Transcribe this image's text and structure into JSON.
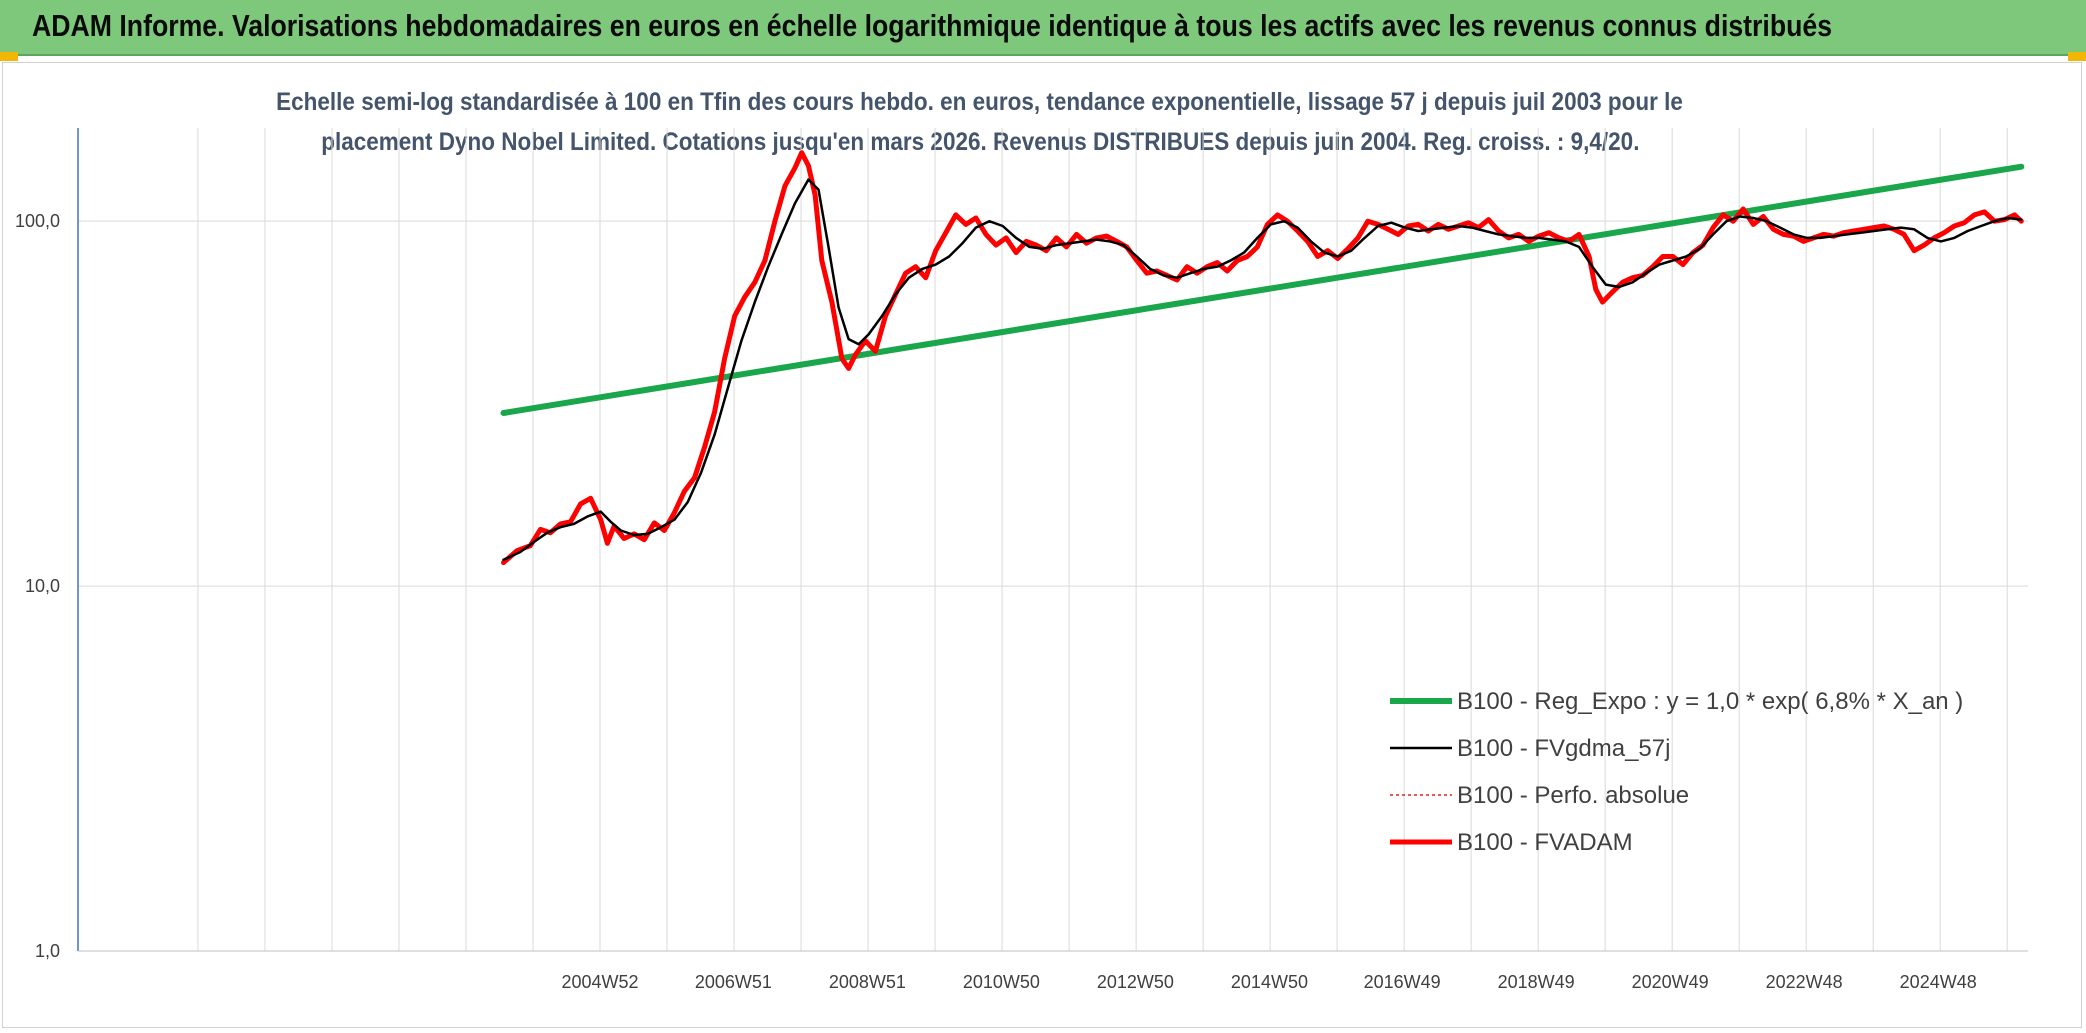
{
  "header": {
    "title": "ADAM Informe. Valorisations hebdomadaires en euros en échelle logarithmique identique à tous les actifs avec les revenus connus distribués"
  },
  "colors": {
    "banner": "#7dc87a",
    "regression": "#1aa64a",
    "smoothed": "#000000",
    "absolute": "#e02020",
    "fvadam": "#ff0000",
    "grid": "#d9d9d9",
    "axis": "#4472c4",
    "title_text": "#44546a"
  },
  "chart_data": {
    "type": "line",
    "title_line1": "Echelle semi-log standardisée à 100 en Tfin des cours hebdo. en euros, tendance exponentielle, lissage 57 j depuis juil 2003 pour le",
    "title_line2": "placement Dyno Nobel Limited. Cotations jusqu'en mars 2026. Revenus DISTRIBUES depuis juin 2004. Reg. croiss. : 9,4/20.",
    "y_scale": "log",
    "ylim": [
      1,
      180
    ],
    "y_ticks": [
      {
        "value": 100,
        "label": "100,0"
      },
      {
        "value": 10,
        "label": "10,0"
      },
      {
        "value": 1,
        "label": "1,0"
      }
    ],
    "xlim": [
      1997.2,
      2026.3
    ],
    "x_ticks": [
      {
        "value": 2004.99,
        "label": "2004W52"
      },
      {
        "value": 2006.98,
        "label": "2006W51"
      },
      {
        "value": 2008.98,
        "label": "2008W51"
      },
      {
        "value": 2010.98,
        "label": "2010W50"
      },
      {
        "value": 2012.98,
        "label": "2012W50"
      },
      {
        "value": 2014.98,
        "label": "2014W50"
      },
      {
        "value": 2016.96,
        "label": "2016W49"
      },
      {
        "value": 2018.96,
        "label": "2018W49"
      },
      {
        "value": 2020.96,
        "label": "2020W49"
      },
      {
        "value": 2022.96,
        "label": "2022W48"
      },
      {
        "value": 2024.96,
        "label": "2024W48"
      }
    ],
    "grid": true,
    "legend_position": "right",
    "series": [
      {
        "name": "B100 - Reg_Expo : y = 1,0 * exp( 6,8% *  X_an )",
        "style": "regression",
        "x": [
          2003.55,
          2026.2
        ],
        "y": [
          29.8,
          141
        ]
      },
      {
        "name": "B100 - FVgdma_57j",
        "style": "smoothed",
        "x": [
          2003.55,
          2003.8,
          2004.0,
          2004.2,
          2004.4,
          2004.6,
          2004.8,
          2005.0,
          2005.15,
          2005.3,
          2005.5,
          2005.7,
          2005.9,
          2006.1,
          2006.3,
          2006.5,
          2006.7,
          2006.9,
          2007.1,
          2007.3,
          2007.5,
          2007.7,
          2007.9,
          2008.1,
          2008.25,
          2008.4,
          2008.55,
          2008.7,
          2008.85,
          2009.0,
          2009.2,
          2009.4,
          2009.6,
          2009.8,
          2010.0,
          2010.2,
          2010.4,
          2010.6,
          2010.8,
          2011.0,
          2011.2,
          2011.4,
          2011.6,
          2011.8,
          2012.0,
          2012.2,
          2012.4,
          2012.6,
          2012.8,
          2013.0,
          2013.2,
          2013.4,
          2013.6,
          2013.8,
          2014.0,
          2014.2,
          2014.4,
          2014.6,
          2014.8,
          2015.0,
          2015.2,
          2015.4,
          2015.6,
          2015.8,
          2016.0,
          2016.2,
          2016.4,
          2016.6,
          2016.8,
          2017.0,
          2017.2,
          2017.4,
          2017.6,
          2017.8,
          2018.0,
          2018.2,
          2018.4,
          2018.6,
          2018.8,
          2019.0,
          2019.2,
          2019.4,
          2019.6,
          2019.8,
          2020.0,
          2020.2,
          2020.4,
          2020.6,
          2020.8,
          2021.0,
          2021.2,
          2021.4,
          2021.6,
          2021.8,
          2022.0,
          2022.2,
          2022.4,
          2022.6,
          2022.8,
          2023.0,
          2023.2,
          2023.4,
          2023.6,
          2023.8,
          2024.0,
          2024.2,
          2024.4,
          2024.6,
          2024.8,
          2025.0,
          2025.2,
          2025.4,
          2025.6,
          2025.8,
          2026.0,
          2026.2
        ],
        "y": [
          11.8,
          12.4,
          13.2,
          14.0,
          14.5,
          14.8,
          15.5,
          16.0,
          15.0,
          14.2,
          13.8,
          13.9,
          14.5,
          15.2,
          17.0,
          20.5,
          26.0,
          35.0,
          47.0,
          60.0,
          75.0,
          92.0,
          112.0,
          130.0,
          122.0,
          85.0,
          58.0,
          47.5,
          46.0,
          49.0,
          55.0,
          63.0,
          70.0,
          74.0,
          76.0,
          80.0,
          87.0,
          96.0,
          100.0,
          97.0,
          90.0,
          85.0,
          84.0,
          86.0,
          87.0,
          88.0,
          89.0,
          88.0,
          86.0,
          80.0,
          74.0,
          71.0,
          70.0,
          72.0,
          74.0,
          75.0,
          78.0,
          82.0,
          90.0,
          98.0,
          100.0,
          96.0,
          88.0,
          82.0,
          80.0,
          83.0,
          90.0,
          97.0,
          99.0,
          96.0,
          94.0,
          95.0,
          96.0,
          97.0,
          96.0,
          94.0,
          92.0,
          91.0,
          90.0,
          90.0,
          89.0,
          88.0,
          85.0,
          75.0,
          67.0,
          66.0,
          68.0,
          72.0,
          76.0,
          78.0,
          80.0,
          84.0,
          92.0,
          100.0,
          103.0,
          102.0,
          100.0,
          96.0,
          92.0,
          90.0,
          90.0,
          91.0,
          92.0,
          93.0,
          94.0,
          95.0,
          96.0,
          95.0,
          90.0,
          88.0,
          90.0,
          94.0,
          97.0,
          100.0,
          102.0,
          101.0
        ]
      },
      {
        "name": "B100 - Perfo. absolue",
        "style": "dotted",
        "x": [
          2003.55,
          2003.75,
          2003.95,
          2004.1,
          2004.25,
          2004.4,
          2004.55,
          2004.7,
          2004.85,
          2005.0,
          2005.1,
          2005.2,
          2005.35,
          2005.5,
          2005.65,
          2005.8,
          2005.95,
          2006.1,
          2006.25,
          2006.4,
          2006.55,
          2006.7,
          2006.85,
          2007.0,
          2007.15,
          2007.3,
          2007.45,
          2007.6,
          2007.75,
          2007.9,
          2008.0,
          2008.1,
          2008.2,
          2008.3,
          2008.45,
          2008.6,
          2008.7,
          2008.8,
          2008.95,
          2009.1,
          2009.25,
          2009.4,
          2009.55,
          2009.7,
          2009.85,
          2010.0,
          2010.15,
          2010.3,
          2010.45,
          2010.6,
          2010.75,
          2010.9,
          2011.05,
          2011.2,
          2011.35,
          2011.5,
          2011.65,
          2011.8,
          2011.95,
          2012.1,
          2012.25,
          2012.4,
          2012.55,
          2012.7,
          2012.85,
          2013.0,
          2013.15,
          2013.3,
          2013.45,
          2013.6,
          2013.75,
          2013.9,
          2014.05,
          2014.2,
          2014.35,
          2014.5,
          2014.65,
          2014.8,
          2014.95,
          2015.1,
          2015.25,
          2015.4,
          2015.55,
          2015.7,
          2015.85,
          2016.0,
          2016.15,
          2016.3,
          2016.45,
          2016.6,
          2016.75,
          2016.9,
          2017.05,
          2017.2,
          2017.35,
          2017.5,
          2017.65,
          2017.8,
          2017.95,
          2018.1,
          2018.25,
          2018.4,
          2018.55,
          2018.7,
          2018.85,
          2019.0,
          2019.15,
          2019.3,
          2019.45,
          2019.6,
          2019.75,
          2019.85,
          2019.95,
          2020.1,
          2020.25,
          2020.4,
          2020.55,
          2020.7,
          2020.85,
          2021.0,
          2021.15,
          2021.3,
          2021.45,
          2021.6,
          2021.75,
          2021.9,
          2022.05,
          2022.2,
          2022.35,
          2022.5,
          2022.65,
          2022.8,
          2022.95,
          2023.1,
          2023.25,
          2023.4,
          2023.55,
          2023.7,
          2023.85,
          2024.0,
          2024.15,
          2024.3,
          2024.45,
          2024.6,
          2024.75,
          2024.9,
          2025.05,
          2025.2,
          2025.35,
          2025.5,
          2025.65,
          2025.8,
          2025.95,
          2026.1,
          2026.2
        ],
        "y": [
          11.6,
          12.5,
          12.9,
          14.3,
          14.0,
          14.8,
          15.0,
          16.8,
          17.4,
          15.2,
          13.1,
          14.6,
          13.5,
          13.9,
          13.4,
          14.9,
          14.2,
          15.9,
          18.2,
          19.8,
          24.0,
          30.0,
          42.0,
          55.0,
          62.0,
          68.0,
          78.0,
          100.0,
          125.0,
          140.0,
          154.0,
          142.0,
          118.0,
          78.0,
          60.0,
          42.0,
          39.5,
          43.0,
          47.0,
          44.0,
          55.0,
          63.0,
          72.0,
          75.0,
          70.0,
          83.0,
          93.0,
          104.0,
          98.0,
          102.0,
          92.0,
          86.0,
          90.0,
          82.0,
          88.0,
          86.0,
          83.0,
          90.0,
          85.0,
          92.0,
          87.0,
          90.0,
          91.0,
          88.0,
          85.0,
          78.0,
          72.0,
          73.0,
          71.0,
          69.0,
          75.0,
          72.0,
          75.0,
          77.0,
          73.0,
          78.0,
          80.0,
          85.0,
          98.0,
          104.0,
          100.0,
          94.0,
          88.0,
          80.0,
          83.0,
          79.0,
          84.0,
          90.0,
          100.0,
          98.0,
          95.0,
          92.0,
          97.0,
          98.0,
          94.0,
          98.0,
          95.0,
          97.0,
          99.0,
          96.0,
          101.0,
          94.0,
          90.0,
          92.0,
          88.0,
          91.0,
          93.0,
          90.0,
          88.0,
          92.0,
          80.0,
          65.0,
          60.0,
          64.0,
          68.0,
          70.0,
          71.0,
          75.0,
          80.0,
          80.0,
          76.0,
          82.0,
          86.0,
          96.0,
          104.0,
          100.0,
          108.0,
          98.0,
          103.0,
          95.0,
          92.0,
          91.0,
          88.0,
          90.0,
          92.0,
          91.0,
          93.0,
          94.0,
          95.0,
          96.0,
          97.0,
          95.0,
          92.0,
          83.0,
          86.0,
          90.0,
          93.0,
          97.0,
          99.0,
          104.0,
          106.0,
          100.0,
          101.0,
          104.0,
          100.0
        ]
      },
      {
        "name": "B100 - FVADAM",
        "style": "thick",
        "x": [
          2003.55,
          2003.75,
          2003.95,
          2004.1,
          2004.25,
          2004.4,
          2004.55,
          2004.7,
          2004.85,
          2005.0,
          2005.1,
          2005.2,
          2005.35,
          2005.5,
          2005.65,
          2005.8,
          2005.95,
          2006.1,
          2006.25,
          2006.4,
          2006.55,
          2006.7,
          2006.85,
          2007.0,
          2007.15,
          2007.3,
          2007.45,
          2007.6,
          2007.75,
          2007.9,
          2008.0,
          2008.1,
          2008.2,
          2008.3,
          2008.45,
          2008.6,
          2008.7,
          2008.8,
          2008.95,
          2009.1,
          2009.25,
          2009.4,
          2009.55,
          2009.7,
          2009.85,
          2010.0,
          2010.15,
          2010.3,
          2010.45,
          2010.6,
          2010.75,
          2010.9,
          2011.05,
          2011.2,
          2011.35,
          2011.5,
          2011.65,
          2011.8,
          2011.95,
          2012.1,
          2012.25,
          2012.4,
          2012.55,
          2012.7,
          2012.85,
          2013.0,
          2013.15,
          2013.3,
          2013.45,
          2013.6,
          2013.75,
          2013.9,
          2014.05,
          2014.2,
          2014.35,
          2014.5,
          2014.65,
          2014.8,
          2014.95,
          2015.1,
          2015.25,
          2015.4,
          2015.55,
          2015.7,
          2015.85,
          2016.0,
          2016.15,
          2016.3,
          2016.45,
          2016.6,
          2016.75,
          2016.9,
          2017.05,
          2017.2,
          2017.35,
          2017.5,
          2017.65,
          2017.8,
          2017.95,
          2018.1,
          2018.25,
          2018.4,
          2018.55,
          2018.7,
          2018.85,
          2019.0,
          2019.15,
          2019.3,
          2019.45,
          2019.6,
          2019.75,
          2019.85,
          2019.95,
          2020.1,
          2020.25,
          2020.4,
          2020.55,
          2020.7,
          2020.85,
          2021.0,
          2021.15,
          2021.3,
          2021.45,
          2021.6,
          2021.75,
          2021.9,
          2022.05,
          2022.2,
          2022.35,
          2022.5,
          2022.65,
          2022.8,
          2022.95,
          2023.1,
          2023.25,
          2023.4,
          2023.55,
          2023.7,
          2023.85,
          2024.0,
          2024.15,
          2024.3,
          2024.45,
          2024.6,
          2024.75,
          2024.9,
          2025.05,
          2025.2,
          2025.35,
          2025.5,
          2025.65,
          2025.8,
          2025.95,
          2026.1,
          2026.2
        ],
        "y": [
          11.6,
          12.5,
          12.9,
          14.3,
          14.0,
          14.8,
          15.0,
          16.8,
          17.4,
          15.2,
          13.1,
          14.6,
          13.5,
          13.9,
          13.4,
          14.9,
          14.2,
          15.9,
          18.2,
          19.8,
          24.0,
          30.0,
          42.0,
          55.0,
          62.0,
          68.0,
          78.0,
          100.0,
          125.0,
          140.0,
          154.0,
          142.0,
          118.0,
          78.0,
          60.0,
          42.0,
          39.5,
          43.0,
          47.0,
          44.0,
          55.0,
          63.0,
          72.0,
          75.0,
          70.0,
          83.0,
          93.0,
          104.0,
          98.0,
          102.0,
          92.0,
          86.0,
          90.0,
          82.0,
          88.0,
          86.0,
          83.0,
          90.0,
          85.0,
          92.0,
          87.0,
          90.0,
          91.0,
          88.0,
          85.0,
          78.0,
          72.0,
          73.0,
          71.0,
          69.0,
          75.0,
          72.0,
          75.0,
          77.0,
          73.0,
          78.0,
          80.0,
          85.0,
          98.0,
          104.0,
          100.0,
          94.0,
          88.0,
          80.0,
          83.0,
          79.0,
          84.0,
          90.0,
          100.0,
          98.0,
          95.0,
          92.0,
          97.0,
          98.0,
          94.0,
          98.0,
          95.0,
          97.0,
          99.0,
          96.0,
          101.0,
          94.0,
          90.0,
          92.0,
          88.0,
          91.0,
          93.0,
          90.0,
          88.0,
          92.0,
          80.0,
          65.0,
          60.0,
          64.0,
          68.0,
          70.0,
          71.0,
          75.0,
          80.0,
          80.0,
          76.0,
          82.0,
          86.0,
          96.0,
          104.0,
          100.0,
          108.0,
          98.0,
          103.0,
          95.0,
          92.0,
          91.0,
          88.0,
          90.0,
          92.0,
          91.0,
          93.0,
          94.0,
          95.0,
          96.0,
          97.0,
          95.0,
          92.0,
          83.0,
          86.0,
          90.0,
          93.0,
          97.0,
          99.0,
          104.0,
          106.0,
          100.0,
          101.0,
          104.0,
          100.0
        ]
      }
    ]
  }
}
